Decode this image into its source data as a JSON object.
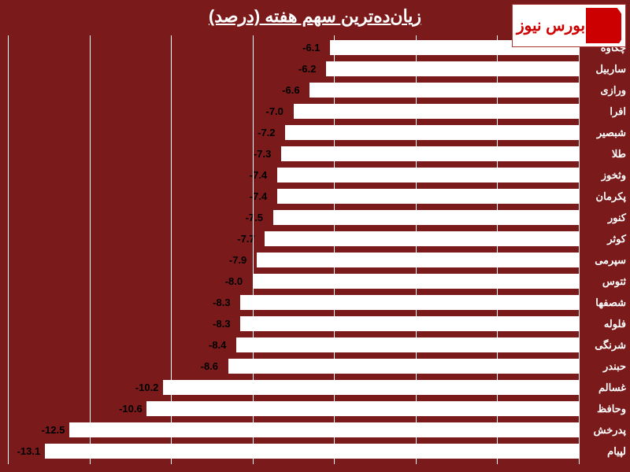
{
  "logo": {
    "text": "بورس نیوز"
  },
  "chart": {
    "type": "bar",
    "title": "زیان‌ده‌ترین سهم هفته (درصد)",
    "background_color": "#7a1a1a",
    "bar_color": "#ffffff",
    "text_color": "#ffffff",
    "value_color": "#000000",
    "title_fontsize": 22,
    "label_fontsize": 13,
    "value_fontsize": 13,
    "xlim": [
      -14,
      0
    ],
    "xtick_step": 2,
    "orientation": "horizontal",
    "items": [
      {
        "label": "چکاوه",
        "value": -6.1
      },
      {
        "label": "ساربیل",
        "value": -6.2
      },
      {
        "label": "ورازی",
        "value": -6.6
      },
      {
        "label": "افرا",
        "value": -7.0
      },
      {
        "label": "شبصیر",
        "value": -7.2
      },
      {
        "label": "طلا",
        "value": -7.3
      },
      {
        "label": "وثخوز",
        "value": -7.4
      },
      {
        "label": "پکرمان",
        "value": -7.4
      },
      {
        "label": "کنور",
        "value": -7.5
      },
      {
        "label": "کوثر",
        "value": -7.7
      },
      {
        "label": "سپرمی",
        "value": -7.9
      },
      {
        "label": "ثتوس",
        "value": -8.0
      },
      {
        "label": "شصفها",
        "value": -8.3
      },
      {
        "label": "فلوله",
        "value": -8.3
      },
      {
        "label": "شرنگی",
        "value": -8.4
      },
      {
        "label": "حبندر",
        "value": -8.6
      },
      {
        "label": "غسالم",
        "value": -10.2
      },
      {
        "label": "وحافظ",
        "value": -10.6
      },
      {
        "label": "پدرخش",
        "value": -12.5
      },
      {
        "label": "لپیام",
        "value": -13.1
      }
    ]
  }
}
